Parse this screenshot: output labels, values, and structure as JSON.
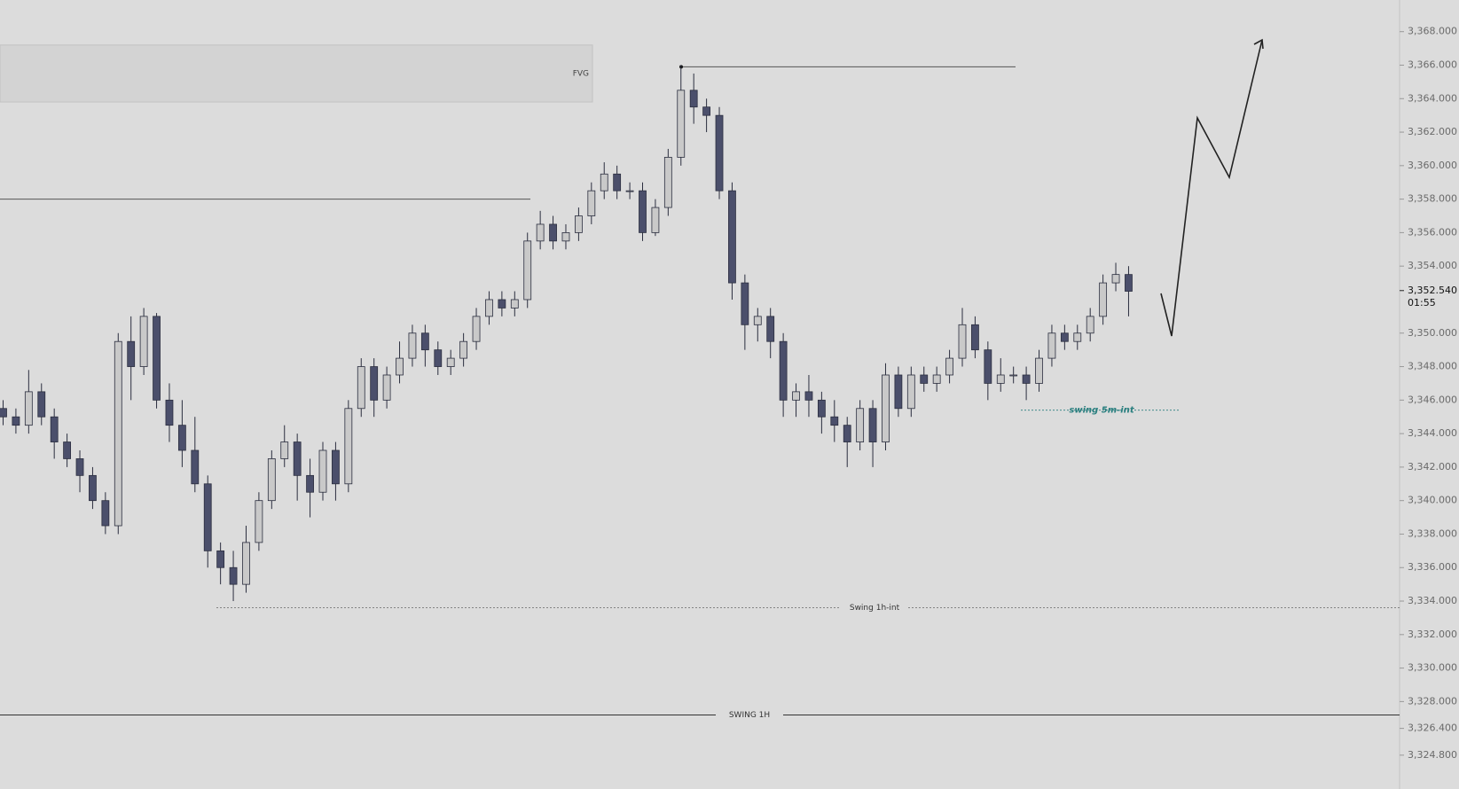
{
  "chart_data": {
    "type": "candlestick",
    "open": [
      3345.5,
      3345,
      3344.5,
      3346.5,
      3345,
      3343.5,
      3342.5,
      3341.5,
      3340,
      3338.5,
      3349.5,
      3348,
      3351,
      3346,
      3344.5,
      3343,
      3341,
      3337,
      3336,
      3335,
      3337.5,
      3340,
      3342.5,
      3343.5,
      3341.5,
      3340.5,
      3343,
      3341,
      3345.5,
      3348,
      3346,
      3347.5,
      3348.5,
      3350,
      3349,
      3348,
      3348.5,
      3349.5,
      3351,
      3352,
      3351.5,
      3352,
      3355.5,
      3356.5,
      3355.5,
      3356,
      3357,
      3358.5,
      3359.5,
      3358.5,
      3358.5,
      3356,
      3357.5,
      3360.5,
      3364.5,
      3363.5,
      3363,
      3358.5,
      3353,
      3350.5,
      3351,
      3349.5,
      3346,
      3346.5,
      3346,
      3345,
      3344.5,
      3343.5,
      3345.5,
      3343.5,
      3347.5,
      3345.5,
      3347.5,
      3347,
      3347.5,
      3348.5,
      3350.5,
      3349,
      3347,
      3347.5,
      3347.5,
      3347,
      3348.5,
      3350,
      3349.5,
      3350,
      3351,
      3353,
      3353.5
    ],
    "high": [
      3346,
      3345.5,
      3347.8,
      3347,
      3345.5,
      3344,
      3343,
      3342,
      3340.5,
      3350,
      3351,
      3351.5,
      3351.2,
      3347,
      3346,
      3345,
      3341.5,
      3337.5,
      3337,
      3338.5,
      3340.5,
      3343,
      3344.5,
      3344,
      3342.5,
      3343.5,
      3343.5,
      3346,
      3348.5,
      3348.5,
      3348,
      3349.5,
      3350.5,
      3350.5,
      3349.5,
      3349,
      3350,
      3351.5,
      3352.5,
      3352.5,
      3352.5,
      3356,
      3357.3,
      3357,
      3356.5,
      3357.5,
      3359,
      3360.2,
      3360,
      3359,
      3359,
      3358,
      3361,
      3366,
      3365.5,
      3364,
      3363.5,
      3359,
      3353.5,
      3351.5,
      3351.5,
      3350,
      3347,
      3347.5,
      3346.5,
      3346,
      3345,
      3346,
      3346,
      3348.2,
      3348,
      3348,
      3348,
      3348,
      3349,
      3351.5,
      3351,
      3349.5,
      3348.5,
      3348,
      3348,
      3349,
      3350.5,
      3350.5,
      3350.5,
      3351.5,
      3353.5,
      3354.2,
      3354
    ],
    "low": [
      3344.5,
      3344,
      3344,
      3344.5,
      3342.5,
      3342,
      3340.5,
      3339.5,
      3338,
      3338,
      3346,
      3347.5,
      3345.5,
      3343.5,
      3342,
      3340.5,
      3336,
      3335,
      3334,
      3334.5,
      3337,
      3339.5,
      3342,
      3340,
      3339,
      3340,
      3340,
      3340.5,
      3345,
      3345,
      3345.5,
      3347,
      3348,
      3348,
      3347.5,
      3347.5,
      3348,
      3349,
      3350.5,
      3351,
      3351,
      3351.5,
      3355,
      3355,
      3355,
      3355.5,
      3356.5,
      3358,
      3358,
      3358,
      3355.5,
      3355.8,
      3357,
      3360,
      3362.5,
      3362,
      3358,
      3352,
      3349,
      3349.5,
      3348.5,
      3345,
      3345,
      3345,
      3344,
      3343.5,
      3342,
      3343,
      3342,
      3343,
      3345,
      3345,
      3346.5,
      3346.5,
      3347,
      3348,
      3348.5,
      3346,
      3346.5,
      3347,
      3346,
      3346.5,
      3348,
      3349,
      3349,
      3349.5,
      3350.5,
      3352.5,
      3351
    ],
    "close": [
      3345,
      3344.5,
      3346.5,
      3345,
      3343.5,
      3342.5,
      3341.5,
      3340,
      3338.5,
      3349.5,
      3348,
      3351,
      3346,
      3344.5,
      3343,
      3341,
      3337,
      3336,
      3335,
      3337.5,
      3340,
      3342.5,
      3343.5,
      3341.5,
      3340.5,
      3343,
      3341,
      3345.5,
      3348,
      3346,
      3347.5,
      3348.5,
      3350,
      3349,
      3348,
      3348.5,
      3349.5,
      3351,
      3352,
      3351.5,
      3352,
      3355.5,
      3356.5,
      3355.5,
      3356,
      3357,
      3358.5,
      3359.5,
      3358.5,
      3358.5,
      3356,
      3357.5,
      3360.5,
      3364.5,
      3363.5,
      3363,
      3358.5,
      3353,
      3350.5,
      3351,
      3349.5,
      3346,
      3346.5,
      3346,
      3345,
      3344.5,
      3343.5,
      3345.5,
      3343.5,
      3347.5,
      3345.5,
      3347.5,
      3347,
      3347.5,
      3348.5,
      3350.5,
      3349,
      3347,
      3347.5,
      3347.5,
      3347,
      3348.5,
      3350,
      3349.5,
      3350,
      3351,
      3353,
      3353.5,
      3352.5
    ],
    "up_color": "#c9c9c9",
    "down_color": "#4b4f6b",
    "ylim": [
      3322.78,
      3369.89
    ],
    "yticks": [
      {
        "value": 3368,
        "label": "3,368.000"
      },
      {
        "value": 3366,
        "label": "3,366.000"
      },
      {
        "value": 3364,
        "label": "3,364.000"
      },
      {
        "value": 3362,
        "label": "3,362.000"
      },
      {
        "value": 3360,
        "label": "3,360.000"
      },
      {
        "value": 3358,
        "label": "3,358.000"
      },
      {
        "value": 3356,
        "label": "3,356.000"
      },
      {
        "value": 3354,
        "label": "3,354.000"
      },
      {
        "value": 3350,
        "label": "3,350.000"
      },
      {
        "value": 3348,
        "label": "3,348.000"
      },
      {
        "value": 3346,
        "label": "3,346.000"
      },
      {
        "value": 3344,
        "label": "3,344.000"
      },
      {
        "value": 3342,
        "label": "3,342.000"
      },
      {
        "value": 3340,
        "label": "3,340.000"
      },
      {
        "value": 3338,
        "label": "3,338.000"
      },
      {
        "value": 3336,
        "label": "3,336.000"
      },
      {
        "value": 3334,
        "label": "3,334.000"
      },
      {
        "value": 3332,
        "label": "3,332.000"
      },
      {
        "value": 3330,
        "label": "3,330.000"
      },
      {
        "value": 3328,
        "label": "3,328.000"
      },
      {
        "value": 3326.4,
        "label": "3,326.400"
      },
      {
        "value": 3324.8,
        "label": "3,324.800"
      }
    ],
    "last_price": {
      "value": 3352.54,
      "label": "3,352.540"
    },
    "countdown": "01:55",
    "fvg": {
      "label": "FVG",
      "range": [
        3363.8,
        3367.2
      ]
    },
    "levels": [
      {
        "value": 3358.0
      },
      {
        "value": 3365.9
      },
      {
        "value": 3333.6,
        "label": "Swing 1h-int"
      },
      {
        "value": 3327.2,
        "label": "SWING 1H"
      },
      {
        "value": 3345.4,
        "label": "swing 5m-int"
      }
    ]
  }
}
